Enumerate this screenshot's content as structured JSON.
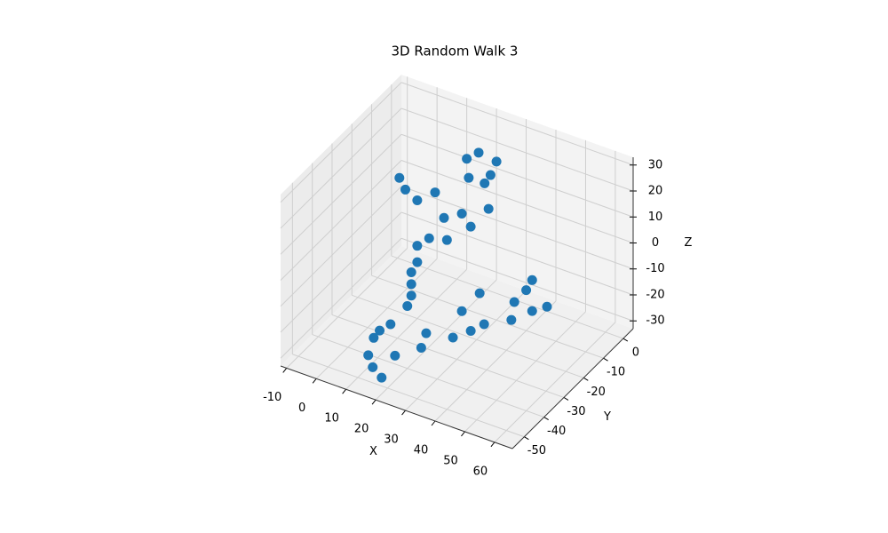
{
  "chart_data": {
    "type": "scatter3d",
    "title": "3D Random Walk 3",
    "xlabel": "X",
    "ylabel": "Y",
    "zlabel": "Z",
    "color": "#1f77b4",
    "xlim": [
      -12,
      66
    ],
    "ylim": [
      -56,
      5
    ],
    "zlim": [
      -33,
      33
    ],
    "xticks": [
      -10,
      0,
      10,
      20,
      30,
      40,
      50,
      60
    ],
    "yticks": [
      -50,
      -40,
      -30,
      -20,
      -10,
      0
    ],
    "zticks": [
      -30,
      -20,
      -10,
      0,
      10,
      20,
      30
    ],
    "grid": true,
    "x": [
      20,
      24,
      30,
      28,
      26,
      22,
      34,
      25,
      19,
      16,
      10,
      4,
      6,
      28,
      20,
      14,
      10,
      10,
      8,
      8,
      8,
      8,
      21,
      16,
      12,
      13.5,
      22.5,
      18,
      15,
      28,
      23,
      32,
      35,
      42.5,
      41,
      38,
      45,
      46,
      52,
      52,
      57,
      50
    ],
    "y": [
      -10,
      -10,
      -10,
      -10,
      -10,
      -12,
      -20,
      -20,
      -20,
      -20,
      -20,
      -20,
      -20,
      -20,
      -20,
      -20,
      -20,
      -20,
      -20,
      -20,
      -20,
      -22,
      -50,
      -48,
      -45,
      -50,
      -50,
      -50,
      -50,
      -45,
      -35,
      -35,
      -35,
      -35,
      -35,
      -35,
      -25,
      -25,
      -25,
      -25,
      -25,
      -25
    ],
    "z": [
      25,
      29,
      28,
      22,
      18,
      20,
      19,
      13.5,
      9.4,
      18,
      12.5,
      18.7,
      15,
      9.7,
      1.3,
      -0.5,
      -5,
      -11.3,
      -16,
      -20.6,
      -25,
      -27.5,
      -8,
      -14,
      -20.7,
      -23,
      -19.5,
      -29.8,
      -27,
      -18,
      -22,
      -20,
      -8.6,
      -10.6,
      0.7,
      -15,
      -15.5,
      -8.2,
      -9.2,
      2.7,
      -5.5,
      -2
    ]
  }
}
